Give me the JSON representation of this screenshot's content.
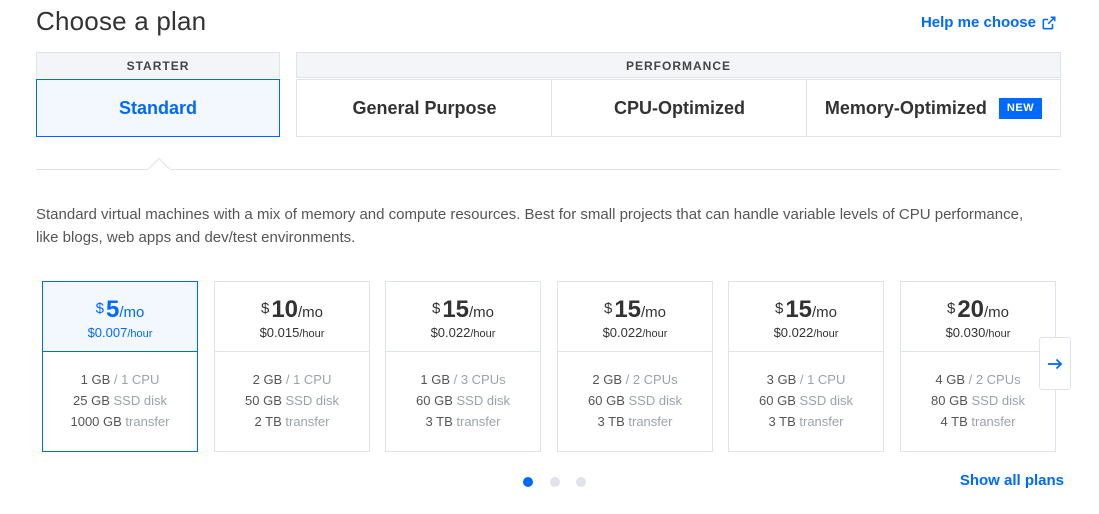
{
  "header": {
    "title": "Choose a plan",
    "help_link": "Help me choose"
  },
  "groups": {
    "starter": "STARTER",
    "performance": "PERFORMANCE"
  },
  "tabs": {
    "standard": "Standard",
    "general_purpose": "General Purpose",
    "cpu_optimized": "CPU-Optimized",
    "memory_optimized": "Memory-Optimized",
    "new_badge": "NEW"
  },
  "description": "Standard virtual machines with a mix of memory and compute resources. Best for small projects that can handle variable levels of CPU performance, like blogs, web apps and dev/test environments.",
  "plans": [
    {
      "currency": "$",
      "amount": "5",
      "period": "/mo",
      "hourly": "$0.007",
      "hourly_unit": "/hour",
      "memory": "1 GB",
      "memory_sep": " / ",
      "cpu": "1 CPU",
      "disk": "25 GB",
      "disk_label": " SSD disk",
      "transfer": "1000 GB",
      "transfer_label": " transfer"
    },
    {
      "currency": "$",
      "amount": "10",
      "period": "/mo",
      "hourly": "$0.015",
      "hourly_unit": "/hour",
      "memory": "2 GB",
      "memory_sep": " / ",
      "cpu": "1 CPU",
      "disk": "50 GB",
      "disk_label": " SSD disk",
      "transfer": "2 TB",
      "transfer_label": " transfer"
    },
    {
      "currency": "$",
      "amount": "15",
      "period": "/mo",
      "hourly": "$0.022",
      "hourly_unit": "/hour",
      "memory": "1 GB",
      "memory_sep": " / ",
      "cpu": "3 CPUs",
      "disk": "60 GB",
      "disk_label": " SSD disk",
      "transfer": "3 TB",
      "transfer_label": " transfer"
    },
    {
      "currency": "$",
      "amount": "15",
      "period": "/mo",
      "hourly": "$0.022",
      "hourly_unit": "/hour",
      "memory": "2 GB",
      "memory_sep": " / ",
      "cpu": "2 CPUs",
      "disk": "60 GB",
      "disk_label": " SSD disk",
      "transfer": "3 TB",
      "transfer_label": " transfer"
    },
    {
      "currency": "$",
      "amount": "15",
      "period": "/mo",
      "hourly": "$0.022",
      "hourly_unit": "/hour",
      "memory": "3 GB",
      "memory_sep": " / ",
      "cpu": "1 CPU",
      "disk": "60 GB",
      "disk_label": " SSD disk",
      "transfer": "3 TB",
      "transfer_label": " transfer"
    },
    {
      "currency": "$",
      "amount": "20",
      "period": "/mo",
      "hourly": "$0.030",
      "hourly_unit": "/hour",
      "memory": "4 GB",
      "memory_sep": " / ",
      "cpu": "2 CPUs",
      "disk": "80 GB",
      "disk_label": " SSD disk",
      "transfer": "4 TB",
      "transfer_label": " transfer"
    }
  ],
  "pagination": {
    "pages": 3,
    "current": 1
  },
  "show_all": "Show all plans",
  "colors": {
    "accent": "#0069ff",
    "border": "#dfe3eb",
    "selected_bg": "#f3f8ff"
  },
  "icons": {
    "help": "external-link-icon",
    "next": "arrow-right-icon"
  }
}
